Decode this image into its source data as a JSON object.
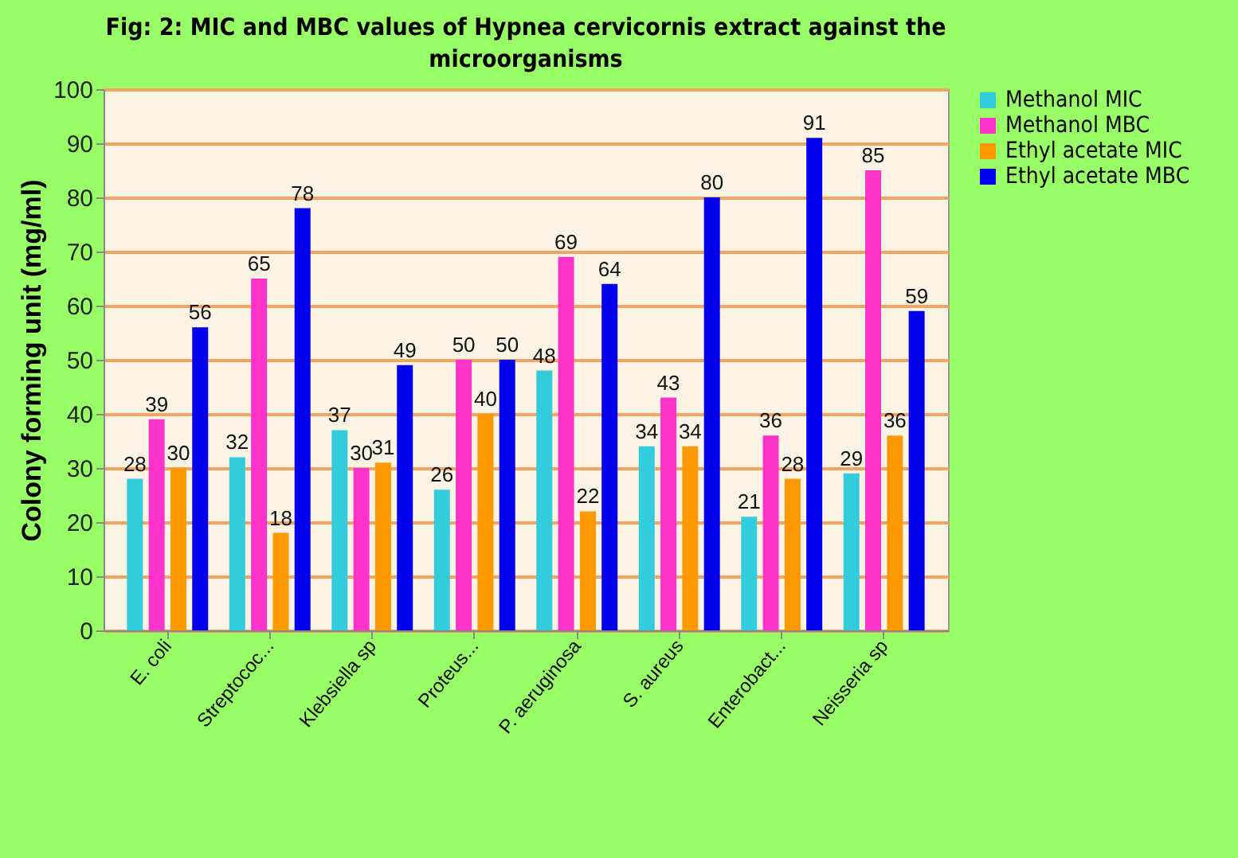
{
  "chart_data": {
    "type": "bar",
    "title": "Fig: 2: MIC and MBC values of Hypnea cervicornis extract against the microorganisms",
    "ylabel": "Colony forming unit (mg/ml)",
    "categories": [
      "E. coli",
      "Streptococ...",
      "Klebsiella sp",
      "Proteus...",
      "P. aeruginosa",
      "S. aureus",
      "Enterobact...",
      "Neisseria sp"
    ],
    "series": [
      {
        "name": "Methanol MIC",
        "color": "#33ccdd",
        "values": [
          28,
          32,
          37,
          26,
          48,
          34,
          21,
          29
        ]
      },
      {
        "name": "Methanol MBC",
        "color": "#ff33cc",
        "values": [
          39,
          65,
          30,
          50,
          69,
          43,
          36,
          85
        ]
      },
      {
        "name": "Ethyl acetate MIC",
        "color": "#ff9900",
        "values": [
          30,
          18,
          31,
          40,
          22,
          34,
          28,
          36
        ]
      },
      {
        "name": "Ethyl acetate MBC",
        "color": "#0000ee",
        "values": [
          56,
          78,
          49,
          50,
          64,
          80,
          91,
          59
        ]
      }
    ],
    "ylim": [
      0,
      100
    ],
    "yticks": [
      0,
      10,
      20,
      30,
      40,
      50,
      60,
      70,
      80,
      90,
      100
    ],
    "grid": "y",
    "legend": "right",
    "data_labels": true
  }
}
